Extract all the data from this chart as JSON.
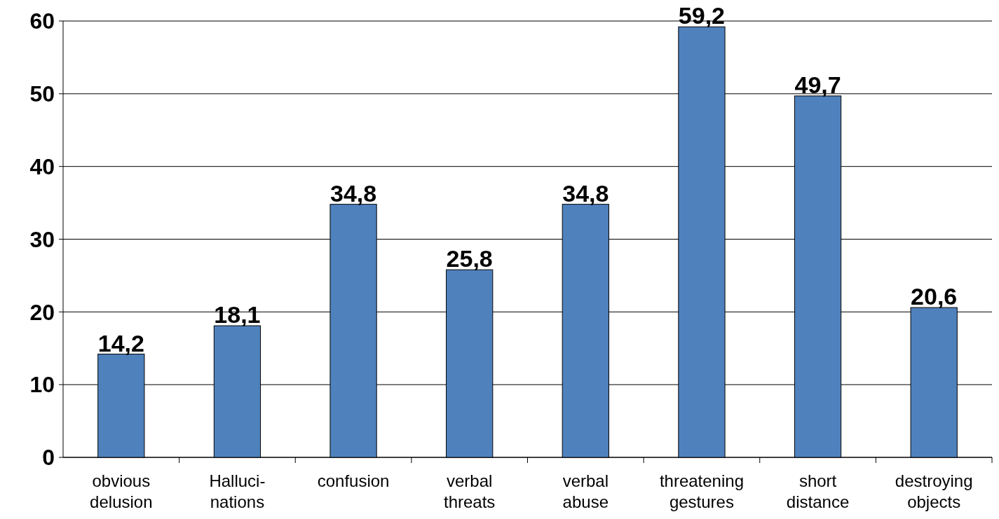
{
  "chart_data": {
    "type": "bar",
    "categories": [
      "obvious\ndelusion",
      "Halluci-\nnations",
      "confusion",
      "verbal\nthreats",
      "verbal\nabuse",
      "threatening\ngestures",
      "short\ndistance",
      "destroying\nobjects"
    ],
    "values": [
      14.2,
      18.1,
      34.8,
      25.8,
      34.8,
      59.2,
      49.7,
      20.6
    ],
    "value_labels": [
      "14,2",
      "18,1",
      "34,8",
      "25,8",
      "34,8",
      "59,2",
      "49,7",
      "20,6"
    ],
    "color": "#4f81bd",
    "ylim": [
      0,
      60
    ],
    "yticks": [
      0,
      10,
      20,
      30,
      40,
      50,
      60
    ],
    "grid": "y"
  }
}
